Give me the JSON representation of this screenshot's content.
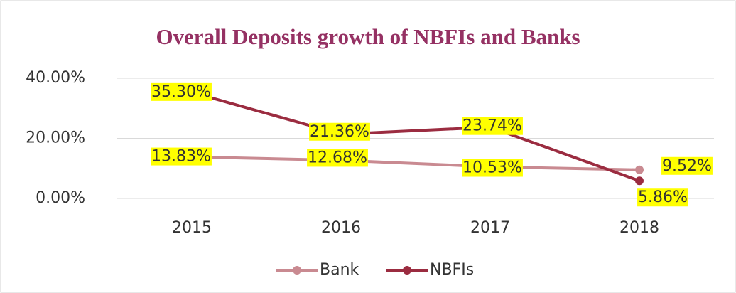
{
  "chart_data": {
    "type": "line",
    "title": "Overall Deposits growth of NBFIs and Banks",
    "categories": [
      "2015",
      "2016",
      "2017",
      "2018"
    ],
    "series": [
      {
        "name": "Bank",
        "color": "#c98a91",
        "values": [
          13.83,
          12.68,
          10.53,
          9.52
        ],
        "value_labels": [
          "13.83%",
          "12.68%",
          "10.53%",
          "9.52%"
        ]
      },
      {
        "name": "NBFIs",
        "color": "#9b2c40",
        "values": [
          35.3,
          21.36,
          23.74,
          5.86
        ],
        "value_labels": [
          "35.30%",
          "21.36%",
          "23.74%",
          "5.86%"
        ]
      }
    ],
    "ylim": [
      0,
      40
    ],
    "yticks": [
      {
        "value": 0,
        "label": "0.00%"
      },
      {
        "value": 20,
        "label": "20.00%"
      },
      {
        "value": 40,
        "label": "40.00%"
      }
    ],
    "grid": true,
    "legend": "bottom"
  }
}
